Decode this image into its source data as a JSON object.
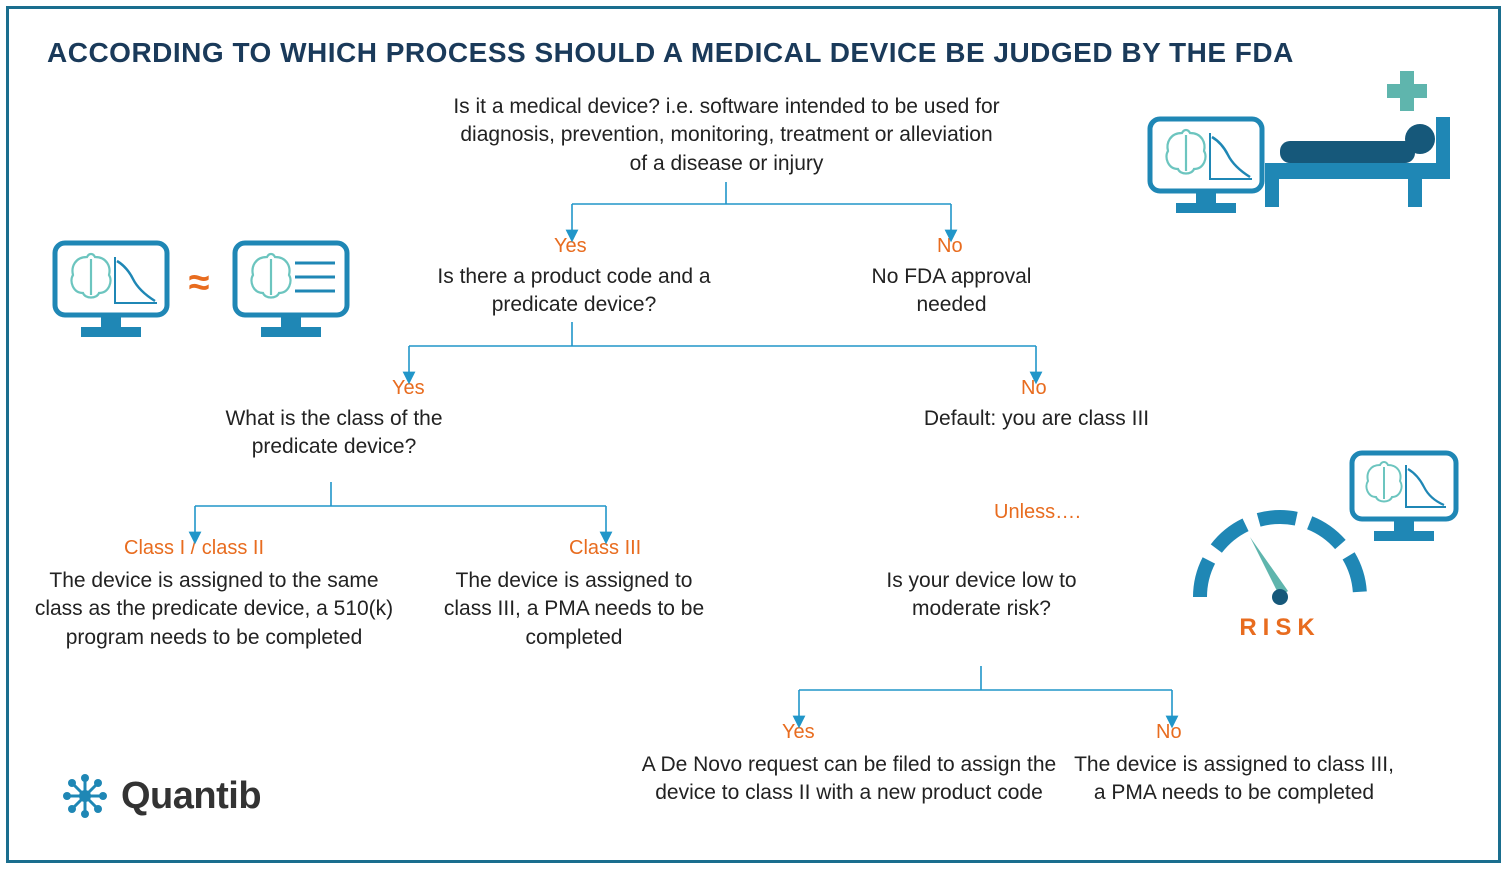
{
  "title": "ACCORDING TO WHICH PROCESS SHOULD A MEDICAL DEVICE BE JUDGED BY THE FDA",
  "colors": {
    "frame": "#1a6e8e",
    "title_text": "#1a3a5a",
    "body_text": "#222222",
    "branch_label": "#e86c1f",
    "connector": "#2196c9",
    "monitor_stroke": "#1f87b5",
    "monitor_fill": "#ffffff",
    "brain_teal": "#6cc5bf",
    "patient_blue": "#1f87b5",
    "plus_teal": "#5fb5ad",
    "risk_text": "#e86c1f",
    "logo_icon": "#1f87b5",
    "logo_text": "#333333"
  },
  "fontsize": {
    "title": 28,
    "node": 21,
    "branch": 20,
    "logo": 38,
    "risk": 24
  },
  "flow": {
    "q1": "Is it a medical device? i.e. software intended to be used for diagnosis, prevention, monitoring, treatment or alleviation of a disease or injury",
    "b1_yes": "Yes",
    "b1_no": "No",
    "q2": "Is there a product code and a predicate device?",
    "r1": "No FDA approval needed",
    "b2_yes": "Yes",
    "b2_no": "No",
    "q3": "What is the class of the predicate device?",
    "r2": "Default: you are class III",
    "b3_left": "Class I / class II",
    "b3_right": "Class III",
    "unless": "Unless….",
    "r3_left": "The device is assigned to the same class as the predicate device, a 510(k) program needs to be completed",
    "r3_right": "The device is assigned to class III, a PMA needs to be completed",
    "q4": "Is your device low to moderate risk?",
    "b4_yes": "Yes",
    "b4_no": "No",
    "r4_left": "A De Novo request can be filed to assign the device to class II with a new product code",
    "r4_right": "The device is assigned to class III, a PMA needs to be completed"
  },
  "logo_text": "Quantib",
  "risk_label": "RISK",
  "connectors": [
    {
      "from": [
        717,
        173
      ],
      "downTo": 195,
      "leftTo": 563,
      "rightTo": 942,
      "arm_down": 32
    },
    {
      "from": [
        563,
        313
      ],
      "downTo": 337,
      "leftTo": 400,
      "rightTo": 1027,
      "arm_down": 32
    },
    {
      "from": [
        322,
        473
      ],
      "downTo": 497,
      "leftTo": 186,
      "rightTo": 597,
      "arm_down": 32
    },
    {
      "from": [
        972,
        657
      ],
      "downTo": 681,
      "leftTo": 790,
      "rightTo": 1163,
      "arm_down": 32
    }
  ]
}
